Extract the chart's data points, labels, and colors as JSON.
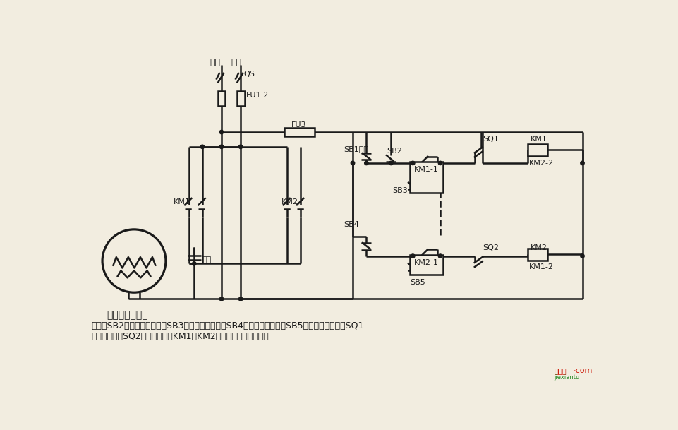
{
  "bg_color": "#f2ede0",
  "lc": "#1a1a1a",
  "lw": 1.8,
  "title": "单相电容电动机",
  "desc1": "说明：SB2为上升启动按鈕，SB3为上升点动按鈕，SB4为下降启动按鈕，SB5为下降点动按鈕；SQ1",
  "desc2": "为最高限位，SQ2为最低限位。KM1、KM2可用中间继电器代替。",
  "label_huoxian": "火线",
  "label_lingxian": "零线",
  "label_QS": "QS",
  "label_FU12": "FU1.2",
  "label_FU3": "FU3",
  "label_KM1": "KM1",
  "label_KM2": "KM2",
  "label_SB1": "SB1停止",
  "label_SB2": "SB2",
  "label_SB3": "SB3",
  "label_SB4": "SB4",
  "label_SB5": "SB5",
  "label_SQ1": "SQ1",
  "label_SQ2": "SQ2",
  "label_KM11": "KM1-1",
  "label_KM21": "KM2-1",
  "label_KM12": "KM1-2",
  "label_KM22": "KM2-2",
  "label_capacitor": "电容",
  "wm1": "接线图",
  "wm2": "jiexiantu",
  "wm3": "·com"
}
